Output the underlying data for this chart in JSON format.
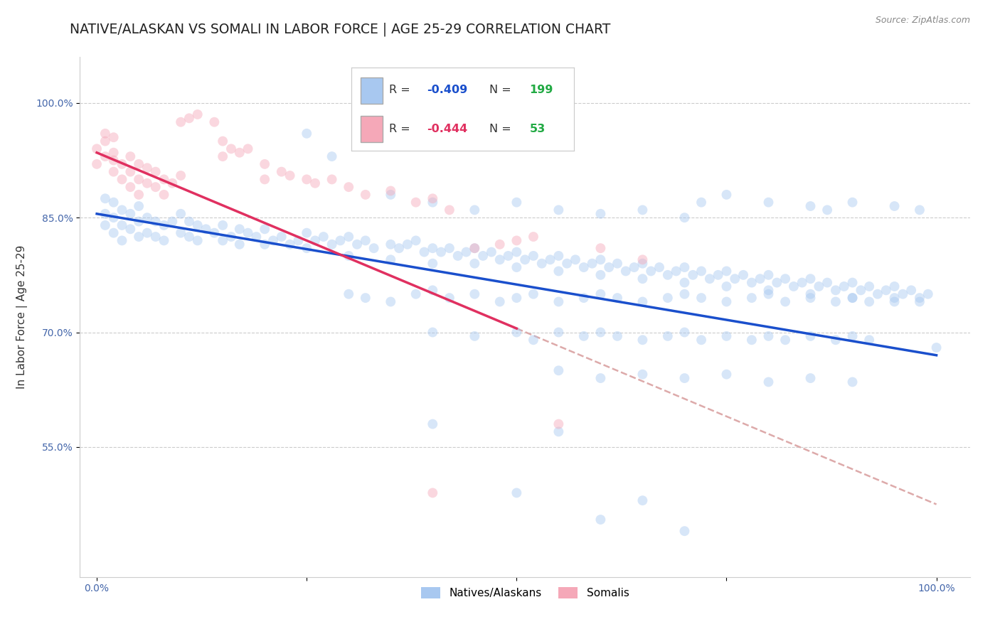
{
  "title": "NATIVE/ALASKAN VS SOMALI IN LABOR FORCE | AGE 25-29 CORRELATION CHART",
  "source_text": "Source: ZipAtlas.com",
  "ylabel": "In Labor Force | Age 25-29",
  "xlim": [
    -0.02,
    1.04
  ],
  "ylim": [
    0.38,
    1.06
  ],
  "xticks": [
    0.0,
    0.25,
    0.5,
    0.75,
    1.0
  ],
  "xticklabels": [
    "0.0%",
    "",
    "",
    "",
    "100.0%"
  ],
  "yticks": [
    0.55,
    0.7,
    0.85,
    1.0
  ],
  "yticklabels": [
    "55.0%",
    "70.0%",
    "85.0%",
    "100.0%"
  ],
  "blue_color": "#a8c8f0",
  "pink_color": "#f5a8b8",
  "blue_line_color": "#1a4fcc",
  "pink_line_color": "#e03060",
  "dashed_line_color": "#ddaaaa",
  "legend_r_color": "#1a4fcc",
  "legend_n_color": "#22aa44",
  "blue_intercept": 0.855,
  "blue_slope": -0.185,
  "pink_intercept": 0.935,
  "pink_slope": -0.46,
  "dashed_intercept": 0.935,
  "dashed_slope": -0.46,
  "background_color": "#ffffff",
  "grid_color": "#cccccc",
  "title_fontsize": 13.5,
  "axis_label_fontsize": 11,
  "tick_fontsize": 10,
  "marker_size": 100,
  "marker_alpha": 0.45,
  "seed": 42,
  "blue_points": [
    [
      0.01,
      0.855
    ],
    [
      0.01,
      0.875
    ],
    [
      0.01,
      0.84
    ],
    [
      0.02,
      0.87
    ],
    [
      0.02,
      0.85
    ],
    [
      0.02,
      0.83
    ],
    [
      0.03,
      0.86
    ],
    [
      0.03,
      0.84
    ],
    [
      0.03,
      0.82
    ],
    [
      0.04,
      0.855
    ],
    [
      0.04,
      0.835
    ],
    [
      0.05,
      0.865
    ],
    [
      0.05,
      0.845
    ],
    [
      0.05,
      0.825
    ],
    [
      0.06,
      0.85
    ],
    [
      0.06,
      0.83
    ],
    [
      0.07,
      0.845
    ],
    [
      0.07,
      0.825
    ],
    [
      0.08,
      0.84
    ],
    [
      0.08,
      0.82
    ],
    [
      0.09,
      0.845
    ],
    [
      0.1,
      0.855
    ],
    [
      0.1,
      0.83
    ],
    [
      0.11,
      0.845
    ],
    [
      0.11,
      0.825
    ],
    [
      0.12,
      0.84
    ],
    [
      0.12,
      0.82
    ],
    [
      0.13,
      0.835
    ],
    [
      0.14,
      0.83
    ],
    [
      0.15,
      0.84
    ],
    [
      0.15,
      0.82
    ],
    [
      0.16,
      0.825
    ],
    [
      0.17,
      0.835
    ],
    [
      0.17,
      0.815
    ],
    [
      0.18,
      0.83
    ],
    [
      0.19,
      0.825
    ],
    [
      0.2,
      0.835
    ],
    [
      0.2,
      0.815
    ],
    [
      0.21,
      0.82
    ],
    [
      0.22,
      0.825
    ],
    [
      0.23,
      0.815
    ],
    [
      0.24,
      0.82
    ],
    [
      0.25,
      0.83
    ],
    [
      0.25,
      0.81
    ],
    [
      0.26,
      0.82
    ],
    [
      0.27,
      0.825
    ],
    [
      0.28,
      0.815
    ],
    [
      0.29,
      0.82
    ],
    [
      0.3,
      0.825
    ],
    [
      0.3,
      0.8
    ],
    [
      0.31,
      0.815
    ],
    [
      0.32,
      0.82
    ],
    [
      0.33,
      0.81
    ],
    [
      0.35,
      0.815
    ],
    [
      0.35,
      0.795
    ],
    [
      0.36,
      0.81
    ],
    [
      0.37,
      0.815
    ],
    [
      0.38,
      0.82
    ],
    [
      0.39,
      0.805
    ],
    [
      0.4,
      0.81
    ],
    [
      0.4,
      0.79
    ],
    [
      0.41,
      0.805
    ],
    [
      0.42,
      0.81
    ],
    [
      0.43,
      0.8
    ],
    [
      0.44,
      0.805
    ],
    [
      0.45,
      0.81
    ],
    [
      0.45,
      0.79
    ],
    [
      0.46,
      0.8
    ],
    [
      0.47,
      0.805
    ],
    [
      0.48,
      0.795
    ],
    [
      0.49,
      0.8
    ],
    [
      0.5,
      0.805
    ],
    [
      0.5,
      0.785
    ],
    [
      0.51,
      0.795
    ],
    [
      0.52,
      0.8
    ],
    [
      0.53,
      0.79
    ],
    [
      0.54,
      0.795
    ],
    [
      0.55,
      0.8
    ],
    [
      0.55,
      0.78
    ],
    [
      0.56,
      0.79
    ],
    [
      0.57,
      0.795
    ],
    [
      0.58,
      0.785
    ],
    [
      0.59,
      0.79
    ],
    [
      0.6,
      0.795
    ],
    [
      0.6,
      0.775
    ],
    [
      0.61,
      0.785
    ],
    [
      0.62,
      0.79
    ],
    [
      0.63,
      0.78
    ],
    [
      0.64,
      0.785
    ],
    [
      0.65,
      0.79
    ],
    [
      0.65,
      0.77
    ],
    [
      0.66,
      0.78
    ],
    [
      0.67,
      0.785
    ],
    [
      0.68,
      0.775
    ],
    [
      0.69,
      0.78
    ],
    [
      0.7,
      0.785
    ],
    [
      0.7,
      0.765
    ],
    [
      0.71,
      0.775
    ],
    [
      0.72,
      0.78
    ],
    [
      0.73,
      0.77
    ],
    [
      0.74,
      0.775
    ],
    [
      0.75,
      0.78
    ],
    [
      0.75,
      0.76
    ],
    [
      0.76,
      0.77
    ],
    [
      0.77,
      0.775
    ],
    [
      0.78,
      0.765
    ],
    [
      0.79,
      0.77
    ],
    [
      0.8,
      0.775
    ],
    [
      0.8,
      0.755
    ],
    [
      0.81,
      0.765
    ],
    [
      0.82,
      0.77
    ],
    [
      0.83,
      0.76
    ],
    [
      0.84,
      0.765
    ],
    [
      0.85,
      0.77
    ],
    [
      0.85,
      0.75
    ],
    [
      0.86,
      0.76
    ],
    [
      0.87,
      0.765
    ],
    [
      0.88,
      0.755
    ],
    [
      0.89,
      0.76
    ],
    [
      0.9,
      0.765
    ],
    [
      0.9,
      0.745
    ],
    [
      0.91,
      0.755
    ],
    [
      0.92,
      0.76
    ],
    [
      0.93,
      0.75
    ],
    [
      0.94,
      0.755
    ],
    [
      0.95,
      0.76
    ],
    [
      0.95,
      0.74
    ],
    [
      0.96,
      0.75
    ],
    [
      0.97,
      0.755
    ],
    [
      0.98,
      0.745
    ],
    [
      0.99,
      0.75
    ],
    [
      1.0,
      0.68
    ],
    [
      0.25,
      0.96
    ],
    [
      0.28,
      0.93
    ],
    [
      0.35,
      0.88
    ],
    [
      0.4,
      0.87
    ],
    [
      0.45,
      0.86
    ],
    [
      0.5,
      0.87
    ],
    [
      0.55,
      0.86
    ],
    [
      0.6,
      0.855
    ],
    [
      0.65,
      0.86
    ],
    [
      0.7,
      0.85
    ],
    [
      0.72,
      0.87
    ],
    [
      0.75,
      0.88
    ],
    [
      0.8,
      0.87
    ],
    [
      0.85,
      0.865
    ],
    [
      0.87,
      0.86
    ],
    [
      0.9,
      0.87
    ],
    [
      0.95,
      0.865
    ],
    [
      0.98,
      0.86
    ],
    [
      0.3,
      0.75
    ],
    [
      0.32,
      0.745
    ],
    [
      0.35,
      0.74
    ],
    [
      0.38,
      0.75
    ],
    [
      0.4,
      0.755
    ],
    [
      0.42,
      0.745
    ],
    [
      0.45,
      0.75
    ],
    [
      0.48,
      0.74
    ],
    [
      0.5,
      0.745
    ],
    [
      0.52,
      0.75
    ],
    [
      0.55,
      0.74
    ],
    [
      0.58,
      0.745
    ],
    [
      0.6,
      0.75
    ],
    [
      0.62,
      0.745
    ],
    [
      0.65,
      0.74
    ],
    [
      0.68,
      0.745
    ],
    [
      0.7,
      0.75
    ],
    [
      0.72,
      0.745
    ],
    [
      0.75,
      0.74
    ],
    [
      0.78,
      0.745
    ],
    [
      0.8,
      0.75
    ],
    [
      0.82,
      0.74
    ],
    [
      0.85,
      0.745
    ],
    [
      0.88,
      0.74
    ],
    [
      0.9,
      0.745
    ],
    [
      0.92,
      0.74
    ],
    [
      0.95,
      0.745
    ],
    [
      0.98,
      0.74
    ],
    [
      0.4,
      0.7
    ],
    [
      0.45,
      0.695
    ],
    [
      0.5,
      0.7
    ],
    [
      0.52,
      0.69
    ],
    [
      0.55,
      0.7
    ],
    [
      0.58,
      0.695
    ],
    [
      0.6,
      0.7
    ],
    [
      0.62,
      0.695
    ],
    [
      0.65,
      0.69
    ],
    [
      0.68,
      0.695
    ],
    [
      0.7,
      0.7
    ],
    [
      0.72,
      0.69
    ],
    [
      0.75,
      0.695
    ],
    [
      0.78,
      0.69
    ],
    [
      0.8,
      0.695
    ],
    [
      0.82,
      0.69
    ],
    [
      0.85,
      0.695
    ],
    [
      0.88,
      0.69
    ],
    [
      0.9,
      0.695
    ],
    [
      0.92,
      0.69
    ],
    [
      0.55,
      0.65
    ],
    [
      0.6,
      0.64
    ],
    [
      0.65,
      0.645
    ],
    [
      0.7,
      0.64
    ],
    [
      0.75,
      0.645
    ],
    [
      0.8,
      0.635
    ],
    [
      0.85,
      0.64
    ],
    [
      0.9,
      0.635
    ],
    [
      0.4,
      0.58
    ],
    [
      0.55,
      0.57
    ],
    [
      0.6,
      0.455
    ],
    [
      0.7,
      0.44
    ],
    [
      0.5,
      0.49
    ],
    [
      0.65,
      0.48
    ]
  ],
  "pink_points": [
    [
      0.0,
      0.94
    ],
    [
      0.0,
      0.92
    ],
    [
      0.01,
      0.96
    ],
    [
      0.01,
      0.93
    ],
    [
      0.01,
      0.95
    ],
    [
      0.02,
      0.935
    ],
    [
      0.02,
      0.91
    ],
    [
      0.02,
      0.955
    ],
    [
      0.02,
      0.925
    ],
    [
      0.03,
      0.92
    ],
    [
      0.03,
      0.9
    ],
    [
      0.04,
      0.93
    ],
    [
      0.04,
      0.91
    ],
    [
      0.04,
      0.89
    ],
    [
      0.05,
      0.92
    ],
    [
      0.05,
      0.9
    ],
    [
      0.05,
      0.88
    ],
    [
      0.06,
      0.915
    ],
    [
      0.06,
      0.895
    ],
    [
      0.07,
      0.91
    ],
    [
      0.07,
      0.89
    ],
    [
      0.08,
      0.9
    ],
    [
      0.08,
      0.88
    ],
    [
      0.09,
      0.895
    ],
    [
      0.1,
      0.905
    ],
    [
      0.1,
      0.975
    ],
    [
      0.11,
      0.98
    ],
    [
      0.12,
      0.985
    ],
    [
      0.14,
      0.975
    ],
    [
      0.15,
      0.95
    ],
    [
      0.15,
      0.93
    ],
    [
      0.16,
      0.94
    ],
    [
      0.17,
      0.935
    ],
    [
      0.18,
      0.94
    ],
    [
      0.2,
      0.92
    ],
    [
      0.2,
      0.9
    ],
    [
      0.22,
      0.91
    ],
    [
      0.23,
      0.905
    ],
    [
      0.25,
      0.9
    ],
    [
      0.26,
      0.895
    ],
    [
      0.28,
      0.9
    ],
    [
      0.3,
      0.89
    ],
    [
      0.32,
      0.88
    ],
    [
      0.35,
      0.885
    ],
    [
      0.38,
      0.87
    ],
    [
      0.4,
      0.875
    ],
    [
      0.4,
      0.49
    ],
    [
      0.42,
      0.86
    ],
    [
      0.45,
      0.81
    ],
    [
      0.48,
      0.815
    ],
    [
      0.5,
      0.82
    ],
    [
      0.52,
      0.825
    ],
    [
      0.55,
      0.58
    ],
    [
      0.6,
      0.81
    ],
    [
      0.65,
      0.795
    ]
  ]
}
